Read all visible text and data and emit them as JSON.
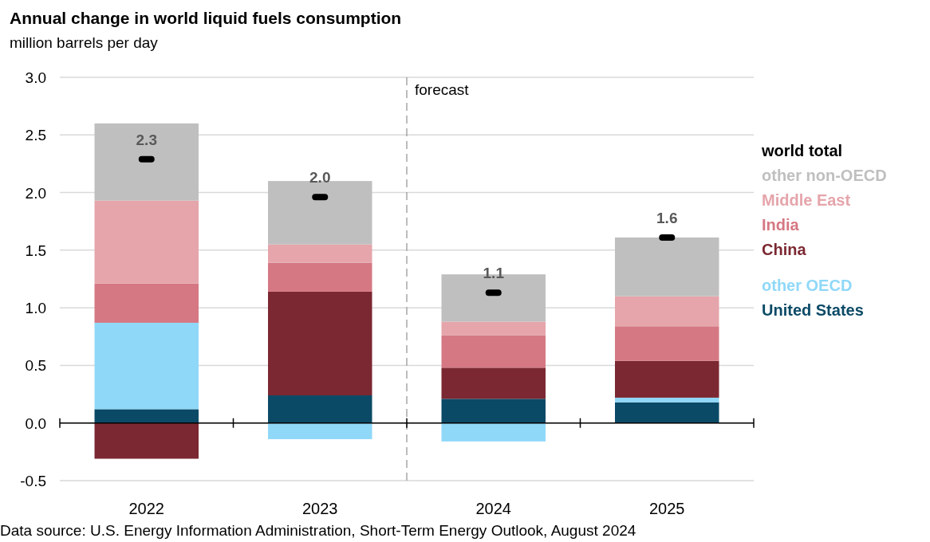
{
  "chart_data": {
    "type": "bar",
    "title": "Annual change in world liquid fuels consumption",
    "subtitle": "million barrels per day",
    "categories": [
      "2022",
      "2023",
      "2024",
      "2025"
    ],
    "stacked": true,
    "series": [
      {
        "name": "United States",
        "color": "#0b4a66",
        "values": [
          0.12,
          0.24,
          0.21,
          0.18
        ]
      },
      {
        "name": "other OECD",
        "color": "#8fd8f8",
        "values": [
          0.75,
          -0.14,
          -0.16,
          0.04
        ]
      },
      {
        "name": "China",
        "color": "#7b2832",
        "values": [
          -0.31,
          0.9,
          0.27,
          0.32
        ]
      },
      {
        "name": "India",
        "color": "#d57883",
        "values": [
          0.34,
          0.25,
          0.28,
          0.3
        ]
      },
      {
        "name": "Middle East",
        "color": "#e5a5ab",
        "values": [
          0.72,
          0.16,
          0.12,
          0.26
        ]
      },
      {
        "name": "other non-OECD",
        "color": "#bfbfbf",
        "values": [
          0.67,
          0.55,
          0.41,
          0.51
        ]
      },
      {
        "name": "world total",
        "type": "scatter",
        "color": "#000000",
        "values": [
          2.29,
          1.96,
          1.13,
          1.61
        ],
        "value_labels": [
          "2.3",
          "2.0",
          "1.1",
          "1.6"
        ]
      }
    ],
    "ylim": [
      -0.5,
      3
    ],
    "yticks": [
      {
        "value": -0.5,
        "label": "-0.5"
      },
      {
        "value": 0,
        "label": "0.0"
      },
      {
        "value": 0.5,
        "label": "0.5"
      },
      {
        "value": 1,
        "label": "1.0"
      },
      {
        "value": 1.5,
        "label": "1.5"
      },
      {
        "value": 2,
        "label": "2.0"
      },
      {
        "value": 2.5,
        "label": "2.5"
      },
      {
        "value": 3,
        "label": "3.0"
      }
    ],
    "grid": "y",
    "legend": "right",
    "ref_lines": [
      {
        "axis": "x",
        "value": "2024",
        "label": "forecast",
        "line_style": "dashed",
        "color": "#a6a6a6"
      }
    ],
    "annotations": [
      "Data source: U.S. Energy Information Administration, Short-Term Energy Outlook, August 2024"
    ]
  }
}
